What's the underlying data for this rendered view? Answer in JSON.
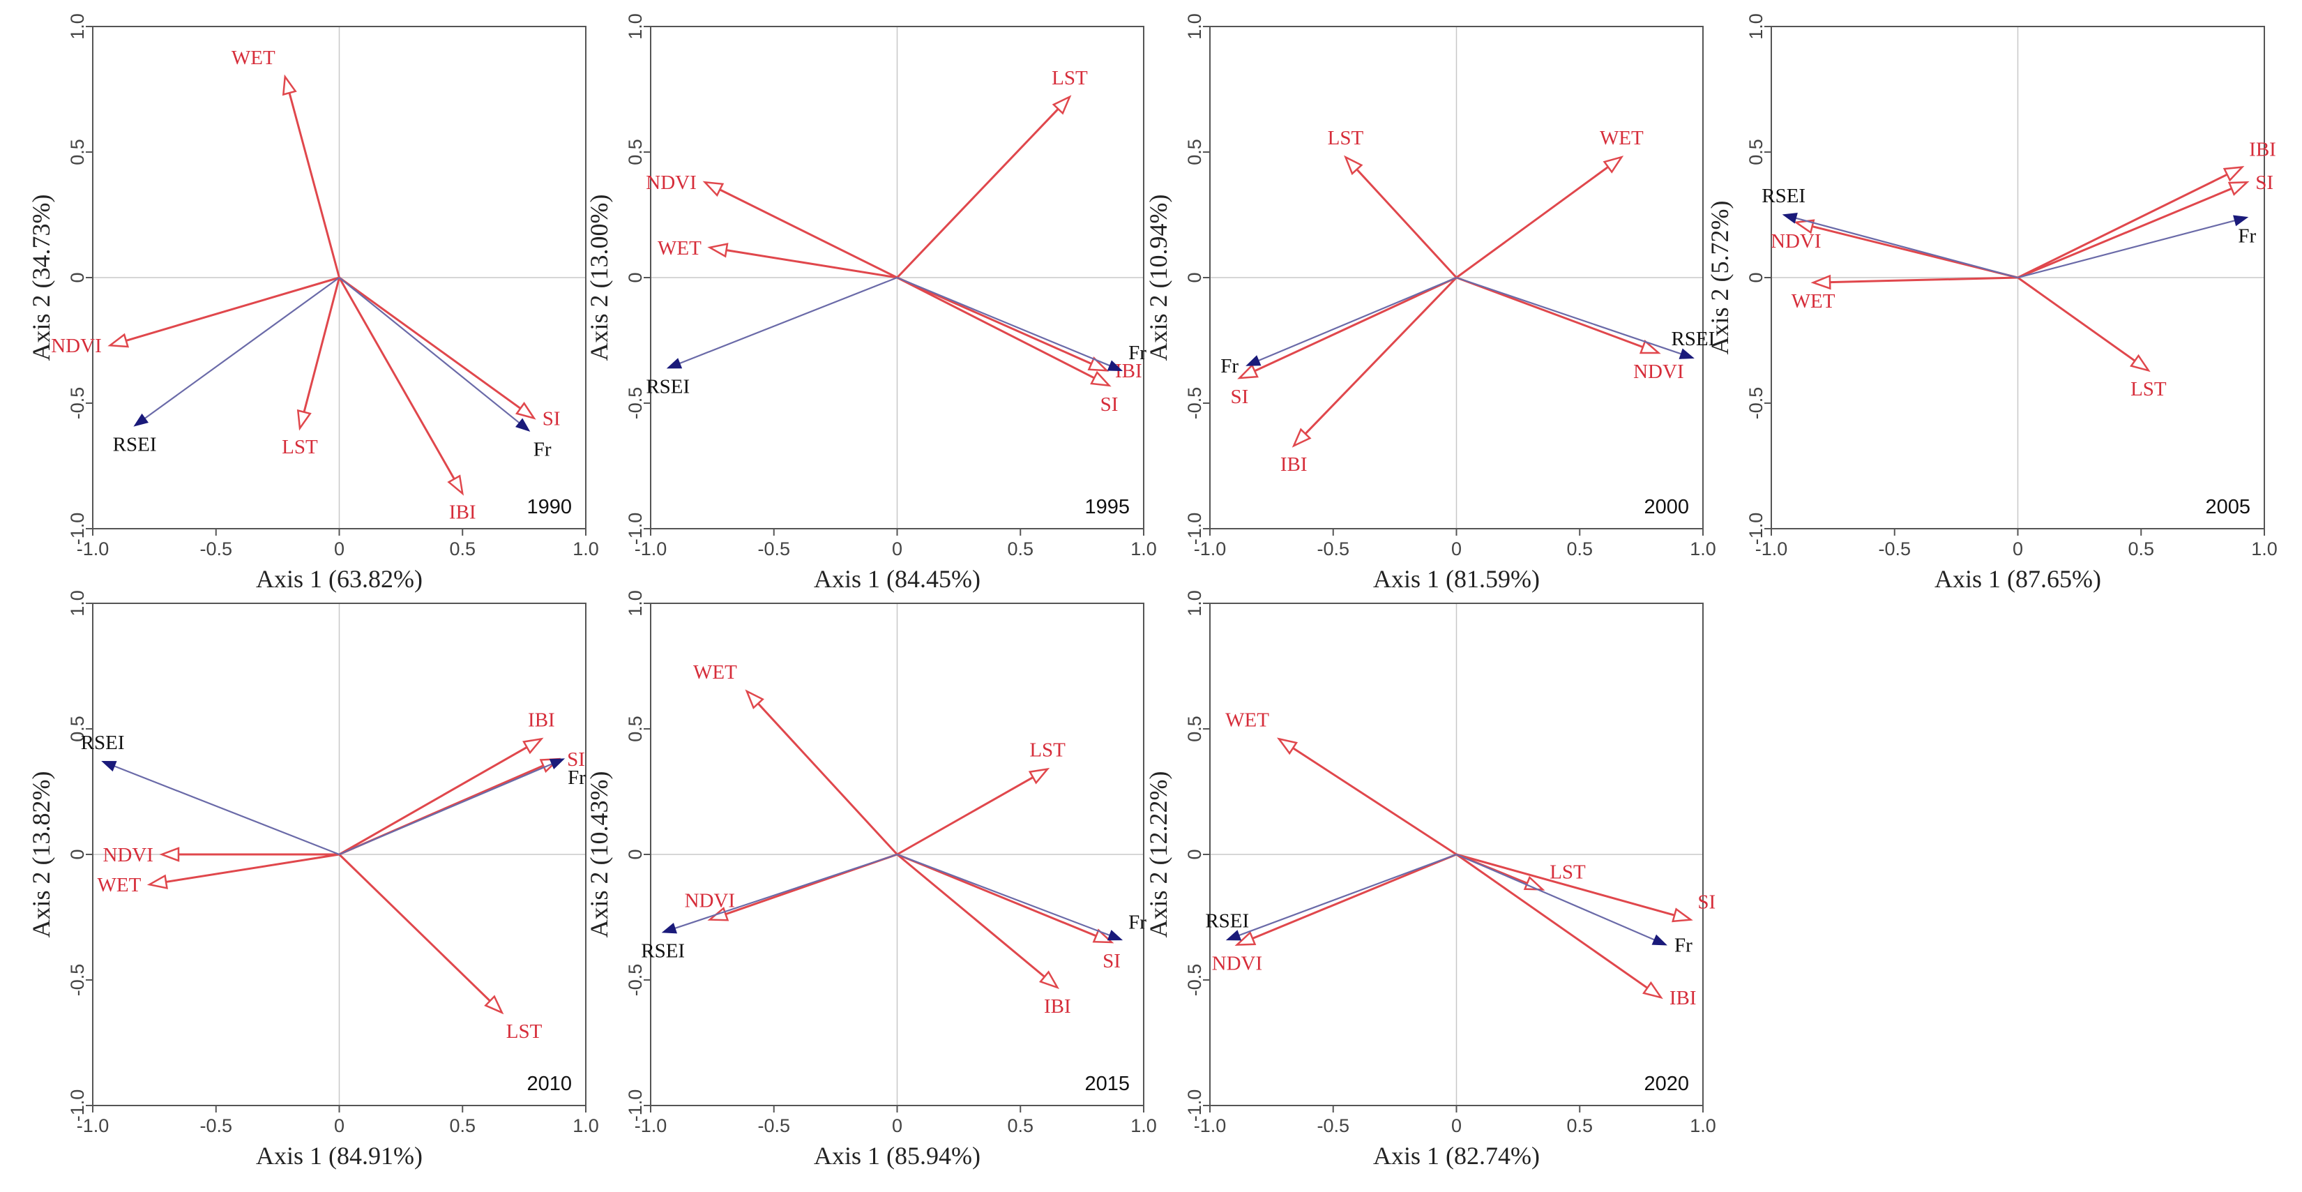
{
  "figure_title": "",
  "colors": {
    "indicator_arrow": "#e0474c",
    "indicator_label": "#d62d3a",
    "response_arrow": "#6a6aa8",
    "response_head": "#1a1a7a",
    "response_label": "#111111",
    "frame": "#555555",
    "zero_line": "#c8c8c8"
  },
  "chart_data": [
    {
      "type": "biplot",
      "year": "1990",
      "xlabel": "Axis 1 (63.82%)",
      "ylabel": "Axis 2 (34.73%)",
      "xlim": [
        -1.0,
        1.0
      ],
      "ylim": [
        -1.0,
        1.0
      ],
      "xticks": [
        "-1.0",
        "-0.5",
        "0",
        "0.5",
        "1.0"
      ],
      "yticks": [
        "-1.0",
        "-0.5",
        "0",
        "0.5",
        "1.0"
      ],
      "vectors": [
        {
          "name": "WET",
          "x": -0.22,
          "y": 0.8,
          "kind": "indicator",
          "label_anchor": "end-left"
        },
        {
          "name": "NDVI",
          "x": -0.93,
          "y": -0.27,
          "kind": "indicator",
          "label_anchor": "left"
        },
        {
          "name": "LST",
          "x": -0.16,
          "y": -0.6,
          "kind": "indicator",
          "label_anchor": "below"
        },
        {
          "name": "IBI",
          "x": 0.5,
          "y": -0.86,
          "kind": "indicator",
          "label_anchor": "below"
        },
        {
          "name": "SI",
          "x": 0.79,
          "y": -0.56,
          "kind": "indicator",
          "label_anchor": "right"
        },
        {
          "name": "RSEI",
          "x": -0.83,
          "y": -0.59,
          "kind": "response",
          "label_anchor": "below"
        },
        {
          "name": "Fr",
          "x": 0.77,
          "y": -0.61,
          "kind": "response",
          "label_anchor": "below-right"
        }
      ]
    },
    {
      "type": "biplot",
      "year": "1995",
      "xlabel": "Axis 1 (84.45%)",
      "ylabel": "Axis 2 (13.00%)",
      "xlim": [
        -1.0,
        1.0
      ],
      "ylim": [
        -1.0,
        1.0
      ],
      "xticks": [
        "-1.0",
        "-0.5",
        "0",
        "0.5",
        "1.0"
      ],
      "yticks": [
        "-1.0",
        "-0.5",
        "0",
        "0.5",
        "1.0"
      ],
      "vectors": [
        {
          "name": "LST",
          "x": 0.7,
          "y": 0.72,
          "kind": "indicator",
          "label_anchor": "above"
        },
        {
          "name": "NDVI",
          "x": -0.78,
          "y": 0.38,
          "kind": "indicator",
          "label_anchor": "left"
        },
        {
          "name": "WET",
          "x": -0.76,
          "y": 0.12,
          "kind": "indicator",
          "label_anchor": "left"
        },
        {
          "name": "IBI",
          "x": 0.85,
          "y": -0.37,
          "kind": "indicator",
          "label_anchor": "right"
        },
        {
          "name": "SI",
          "x": 0.86,
          "y": -0.43,
          "kind": "indicator",
          "label_anchor": "below"
        },
        {
          "name": "RSEI",
          "x": -0.93,
          "y": -0.36,
          "kind": "response",
          "label_anchor": "below"
        },
        {
          "name": "Fr",
          "x": 0.91,
          "y": -0.37,
          "kind": "response",
          "label_anchor": "above-right"
        }
      ]
    },
    {
      "type": "biplot",
      "year": "2000",
      "xlabel": "Axis 1 (81.59%)",
      "ylabel": "Axis 2 (10.94%)",
      "xlim": [
        -1.0,
        1.0
      ],
      "ylim": [
        -1.0,
        1.0
      ],
      "xticks": [
        "-1.0",
        "-0.5",
        "0",
        "0.5",
        "1.0"
      ],
      "yticks": [
        "-1.0",
        "-0.5",
        "0",
        "0.5",
        "1.0"
      ],
      "vectors": [
        {
          "name": "LST",
          "x": -0.45,
          "y": 0.48,
          "kind": "indicator",
          "label_anchor": "above"
        },
        {
          "name": "WET",
          "x": 0.67,
          "y": 0.48,
          "kind": "indicator",
          "label_anchor": "above"
        },
        {
          "name": "NDVI",
          "x": 0.82,
          "y": -0.3,
          "kind": "indicator",
          "label_anchor": "below"
        },
        {
          "name": "SI",
          "x": -0.88,
          "y": -0.4,
          "kind": "indicator",
          "label_anchor": "below"
        },
        {
          "name": "IBI",
          "x": -0.66,
          "y": -0.67,
          "kind": "indicator",
          "label_anchor": "below"
        },
        {
          "name": "RSEI",
          "x": 0.96,
          "y": -0.32,
          "kind": "response",
          "label_anchor": "above"
        },
        {
          "name": "Fr",
          "x": -0.85,
          "y": -0.35,
          "kind": "response",
          "label_anchor": "left"
        }
      ]
    },
    {
      "type": "biplot",
      "year": "2005",
      "xlabel": "Axis 1 (87.65%)",
      "ylabel": "Axis 2 (5.72%)",
      "xlim": [
        -1.0,
        1.0
      ],
      "ylim": [
        -1.0,
        1.0
      ],
      "xticks": [
        "-1.0",
        "-0.5",
        "0",
        "0.5",
        "1.0"
      ],
      "yticks": [
        "-1.0",
        "-0.5",
        "0",
        "0.5",
        "1.0"
      ],
      "vectors": [
        {
          "name": "IBI",
          "x": 0.91,
          "y": 0.44,
          "kind": "indicator",
          "label_anchor": "above-right"
        },
        {
          "name": "SI",
          "x": 0.93,
          "y": 0.38,
          "kind": "indicator",
          "label_anchor": "right"
        },
        {
          "name": "NDVI",
          "x": -0.9,
          "y": 0.22,
          "kind": "indicator",
          "label_anchor": "below"
        },
        {
          "name": "WET",
          "x": -0.83,
          "y": -0.02,
          "kind": "indicator",
          "label_anchor": "below"
        },
        {
          "name": "LST",
          "x": 0.53,
          "y": -0.37,
          "kind": "indicator",
          "label_anchor": "below"
        },
        {
          "name": "RSEI",
          "x": -0.95,
          "y": 0.25,
          "kind": "response",
          "label_anchor": "above"
        },
        {
          "name": "Fr",
          "x": 0.93,
          "y": 0.24,
          "kind": "response",
          "label_anchor": "below"
        }
      ]
    },
    {
      "type": "biplot",
      "year": "2010",
      "xlabel": "Axis 1 (84.91%)",
      "ylabel": "Axis 2 (13.82%)",
      "xlim": [
        -1.0,
        1.0
      ],
      "ylim": [
        -1.0,
        1.0
      ],
      "xticks": [
        "-1.0",
        "-0.5",
        "0",
        "0.5",
        "1.0"
      ],
      "yticks": [
        "-1.0",
        "-0.5",
        "0",
        "0.5",
        "1.0"
      ],
      "vectors": [
        {
          "name": "IBI",
          "x": 0.82,
          "y": 0.46,
          "kind": "indicator",
          "label_anchor": "above"
        },
        {
          "name": "SI",
          "x": 0.89,
          "y": 0.38,
          "kind": "indicator",
          "label_anchor": "right"
        },
        {
          "name": "NDVI",
          "x": -0.72,
          "y": 0.0,
          "kind": "indicator",
          "label_anchor": "left"
        },
        {
          "name": "WET",
          "x": -0.77,
          "y": -0.12,
          "kind": "indicator",
          "label_anchor": "left"
        },
        {
          "name": "LST",
          "x": 0.66,
          "y": -0.63,
          "kind": "indicator",
          "label_anchor": "below-right"
        },
        {
          "name": "RSEI",
          "x": -0.96,
          "y": 0.37,
          "kind": "response",
          "label_anchor": "above"
        },
        {
          "name": "Fr",
          "x": 0.91,
          "y": 0.38,
          "kind": "response",
          "label_anchor": "below-right"
        }
      ]
    },
    {
      "type": "biplot",
      "year": "2015",
      "xlabel": "Axis 1 (85.94%)",
      "ylabel": "Axis 2 (10.43%)",
      "xlim": [
        -1.0,
        1.0
      ],
      "ylim": [
        -1.0,
        1.0
      ],
      "xticks": [
        "-1.0",
        "-0.5",
        "0",
        "0.5",
        "1.0"
      ],
      "yticks": [
        "-1.0",
        "-0.5",
        "0",
        "0.5",
        "1.0"
      ],
      "vectors": [
        {
          "name": "WET",
          "x": -0.61,
          "y": 0.65,
          "kind": "indicator",
          "label_anchor": "end-left"
        },
        {
          "name": "LST",
          "x": 0.61,
          "y": 0.34,
          "kind": "indicator",
          "label_anchor": "above"
        },
        {
          "name": "NDVI",
          "x": -0.76,
          "y": -0.26,
          "kind": "indicator",
          "label_anchor": "above"
        },
        {
          "name": "IBI",
          "x": 0.65,
          "y": -0.53,
          "kind": "indicator",
          "label_anchor": "below"
        },
        {
          "name": "SI",
          "x": 0.87,
          "y": -0.35,
          "kind": "indicator",
          "label_anchor": "below"
        },
        {
          "name": "RSEI",
          "x": -0.95,
          "y": -0.31,
          "kind": "response",
          "label_anchor": "below"
        },
        {
          "name": "Fr",
          "x": 0.91,
          "y": -0.34,
          "kind": "response",
          "label_anchor": "above-right"
        }
      ]
    },
    {
      "type": "biplot",
      "year": "2020",
      "xlabel": "Axis 1 (82.74%)",
      "ylabel": "Axis 2 (12.22%)",
      "xlim": [
        -1.0,
        1.0
      ],
      "ylim": [
        -1.0,
        1.0
      ],
      "xticks": [
        "-1.0",
        "-0.5",
        "0",
        "0.5",
        "1.0"
      ],
      "yticks": [
        "-1.0",
        "-0.5",
        "0",
        "0.5",
        "1.0"
      ],
      "vectors": [
        {
          "name": "WET",
          "x": -0.72,
          "y": 0.46,
          "kind": "indicator",
          "label_anchor": "end-left"
        },
        {
          "name": "LST",
          "x": 0.35,
          "y": -0.14,
          "kind": "indicator",
          "label_anchor": "above-right"
        },
        {
          "name": "SI",
          "x": 0.95,
          "y": -0.26,
          "kind": "indicator",
          "label_anchor": "above-right"
        },
        {
          "name": "IBI",
          "x": 0.83,
          "y": -0.57,
          "kind": "indicator",
          "label_anchor": "right"
        },
        {
          "name": "NDVI",
          "x": -0.89,
          "y": -0.36,
          "kind": "indicator",
          "label_anchor": "below"
        },
        {
          "name": "RSEI",
          "x": -0.93,
          "y": -0.34,
          "kind": "response",
          "label_anchor": "above"
        },
        {
          "name": "Fr",
          "x": 0.85,
          "y": -0.36,
          "kind": "response",
          "label_anchor": "right"
        }
      ]
    }
  ]
}
